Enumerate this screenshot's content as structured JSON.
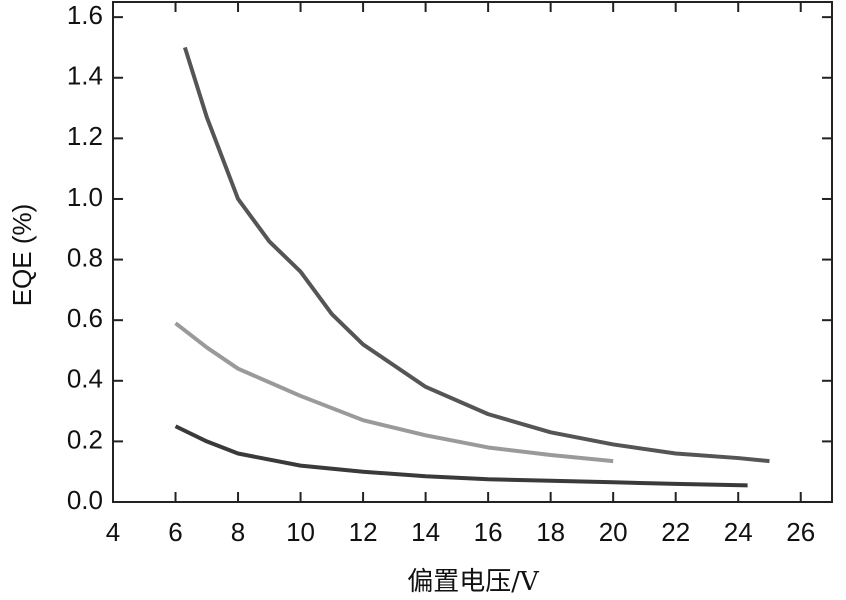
{
  "chart_data": {
    "type": "line",
    "x_label": "偏置电压/V",
    "y_label": "EQE (%)",
    "series": [
      {
        "color": "#555555",
        "x": [
          6.3,
          7,
          8,
          9,
          10,
          11,
          12,
          13,
          14,
          16,
          18,
          20,
          22,
          24,
          25
        ],
        "values": [
          1.5,
          1.27,
          1.0,
          0.86,
          0.76,
          0.62,
          0.52,
          0.45,
          0.38,
          0.29,
          0.23,
          0.19,
          0.16,
          0.145,
          0.135
        ]
      },
      {
        "color": "#9a9a9a",
        "x": [
          6,
          7,
          8,
          10,
          12,
          14,
          16,
          18,
          20
        ],
        "values": [
          0.59,
          0.51,
          0.44,
          0.35,
          0.27,
          0.22,
          0.18,
          0.155,
          0.135
        ]
      },
      {
        "color": "#3a3a3a",
        "x": [
          6,
          7,
          8,
          10,
          12,
          14,
          16,
          18,
          20,
          22,
          24.3
        ],
        "values": [
          0.25,
          0.2,
          0.16,
          0.12,
          0.1,
          0.085,
          0.075,
          0.07,
          0.065,
          0.06,
          0.055
        ]
      }
    ],
    "xlim": [
      4,
      27
    ],
    "xticks": [
      4,
      6,
      8,
      10,
      12,
      14,
      16,
      18,
      20,
      22,
      24,
      26
    ],
    "ylim": [
      0,
      1.65
    ],
    "yticks": [
      {
        "value": 0,
        "label": "0.0"
      },
      0.2,
      0.4,
      0.6,
      0.8,
      {
        "value": 1,
        "label": "1.0"
      },
      1.2,
      1.4,
      1.6
    ]
  }
}
